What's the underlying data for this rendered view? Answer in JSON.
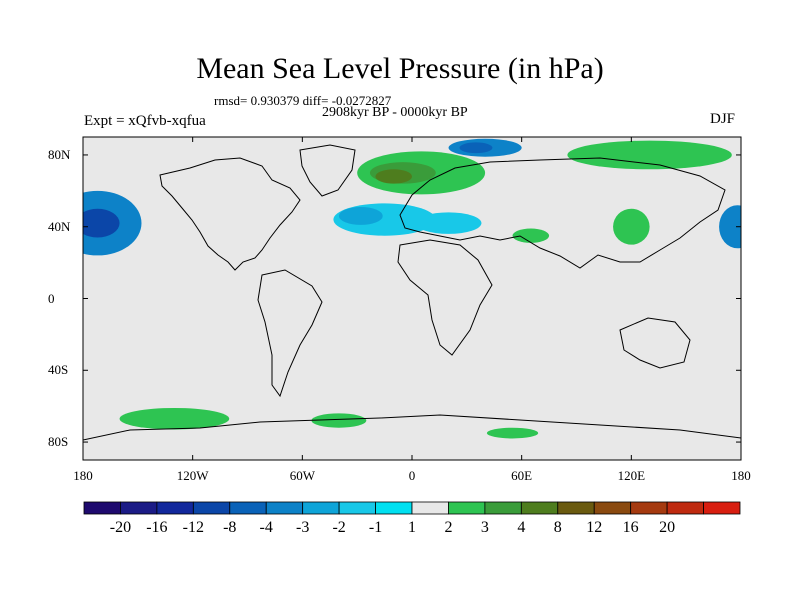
{
  "title": "Mean Sea Level Pressure (in hPa)",
  "stats": "rmsd= 0.930379 diff= -0.0272827",
  "period": "2908kyr BP - 0000kyr BP",
  "experiment": "Expt = xQfvb-xqfua",
  "season": "DJF",
  "axes": {
    "y_ticks": [
      "80N",
      "40N",
      "0",
      "40S",
      "80S"
    ],
    "y_values": [
      80,
      40,
      0,
      -40,
      -80
    ],
    "x_ticks": [
      "180",
      "120W",
      "60W",
      "0",
      "60E",
      "120E",
      "180"
    ],
    "x_values": [
      -180,
      -120,
      -60,
      0,
      60,
      120,
      180
    ],
    "lon_range": [
      -180,
      180
    ],
    "lat_range": [
      -90,
      90
    ]
  },
  "colorbar": {
    "labels": [
      "-20",
      "-16",
      "-12",
      "-8",
      "-4",
      "-3",
      "-2",
      "-1",
      "1",
      "2",
      "3",
      "4",
      "8",
      "12",
      "16",
      "20"
    ],
    "colors": [
      "#1e0a6e",
      "#1b1b86",
      "#12289c",
      "#0b46a8",
      "#0a62b8",
      "#0d82c8",
      "#0ea4d8",
      "#18c8e8",
      "#00e0f0",
      "#e8e8e8",
      "#2ec452",
      "#3a9c3a",
      "#4e7d1e",
      "#6a5a10",
      "#8a4a10",
      "#a53a10",
      "#bf2a10",
      "#d81e10"
    ]
  },
  "map": {
    "background": "#e8e8e8",
    "anomalies": [
      {
        "name": "north-pacific-low",
        "lon": -172,
        "lat": 42,
        "rx": 24,
        "ry": 18,
        "level": 5
      },
      {
        "name": "north-pacific-low-core",
        "lon": -172,
        "lat": 42,
        "rx": 12,
        "ry": 8,
        "level": 3
      },
      {
        "name": "dateline-east-low",
        "lon": 178,
        "lat": 40,
        "rx": 10,
        "ry": 12,
        "level": 5
      },
      {
        "name": "north-atlantic-low",
        "lon": -15,
        "lat": 44,
        "rx": 28,
        "ry": 9,
        "level": 7
      },
      {
        "name": "north-atlantic-low-inner",
        "lon": -28,
        "lat": 46,
        "rx": 12,
        "ry": 5,
        "level": 6
      },
      {
        "name": "mediterranean-low",
        "lon": 20,
        "lat": 42,
        "rx": 18,
        "ry": 6,
        "level": 7
      },
      {
        "name": "barents-low",
        "lon": 40,
        "lat": 84,
        "rx": 20,
        "ry": 5,
        "level": 5
      },
      {
        "name": "barents-low-core",
        "lon": 35,
        "lat": 84,
        "rx": 9,
        "ry": 3,
        "level": 4
      },
      {
        "name": "eurasia-high",
        "lon": 5,
        "lat": 70,
        "rx": 35,
        "ry": 12,
        "level": 10
      },
      {
        "name": "eurasia-high-mid",
        "lon": -5,
        "lat": 70,
        "rx": 18,
        "ry": 6,
        "level": 11
      },
      {
        "name": "eurasia-high-core",
        "lon": -10,
        "lat": 68,
        "rx": 10,
        "ry": 4,
        "level": 12
      },
      {
        "name": "siberia-high",
        "lon": 130,
        "lat": 80,
        "rx": 45,
        "ry": 8,
        "level": 10
      },
      {
        "name": "asia-high",
        "lon": 120,
        "lat": 40,
        "rx": 10,
        "ry": 10,
        "level": 10
      },
      {
        "name": "arabia-high",
        "lon": 65,
        "lat": 35,
        "rx": 10,
        "ry": 4,
        "level": 10
      },
      {
        "name": "southern-ocean-high-1",
        "lon": -130,
        "lat": -67,
        "rx": 30,
        "ry": 6,
        "level": 10
      },
      {
        "name": "southern-ocean-high-2",
        "lon": -40,
        "lat": -68,
        "rx": 15,
        "ry": 4,
        "level": 10
      },
      {
        "name": "southern-ocean-high-3",
        "lon": 55,
        "lat": -75,
        "rx": 14,
        "ry": 3,
        "level": 10
      }
    ]
  }
}
